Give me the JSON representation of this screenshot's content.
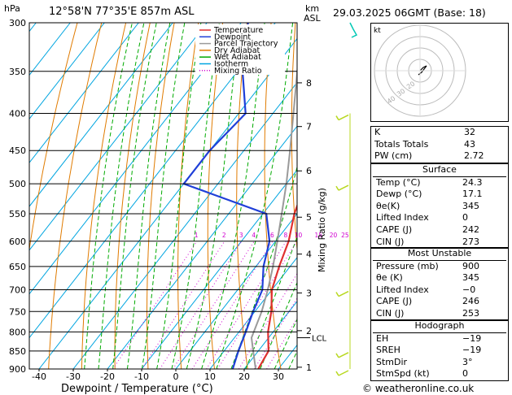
{
  "header": {
    "location": "12°58'N  77°35'E  857m  ASL",
    "date": "29.03.2025  06GMT  (Base: 18)",
    "left_unit": "hPa",
    "right_unit_km": "km",
    "right_unit_asl": "ASL"
  },
  "chart_data": {
    "type": "line",
    "title": "12°58'N  77°35'E  857m  ASL",
    "xlabel": "Dewpoint / Temperature (°C)",
    "ylabel": "hPa",
    "right_label": "Mixing Ratio (g/kg)",
    "xlim": [
      -45,
      40
    ],
    "ylim": [
      900,
      300
    ],
    "pressure_ticks": [
      300,
      350,
      400,
      450,
      500,
      550,
      600,
      650,
      700,
      750,
      800,
      850,
      900
    ],
    "temperature_ticks": [
      -40,
      -30,
      -20,
      -10,
      0,
      10,
      20,
      30
    ],
    "km_ticks": [
      {
        "label": "1",
        "p": 895
      },
      {
        "label": "2",
        "p": 797
      },
      {
        "label": "3",
        "p": 707
      },
      {
        "label": "4",
        "p": 625
      },
      {
        "label": "5",
        "p": 556
      },
      {
        "label": "6",
        "p": 480
      },
      {
        "label": "7",
        "p": 417
      },
      {
        "label": "8",
        "p": 363
      }
    ],
    "lcl_label": "LCL",
    "lcl_p": 815,
    "mixing_ratio_labels": [
      "1",
      "2",
      "3",
      "4",
      "6",
      "8",
      "10",
      "15",
      "20",
      "25"
    ],
    "mixing_ratio_values": [
      1,
      2,
      3,
      4,
      6,
      8,
      10,
      15,
      20,
      25
    ],
    "legend": {
      "position": "top-left",
      "items": [
        {
          "label": "Temperature",
          "color": "#e03030",
          "style": "solid"
        },
        {
          "label": "Dewpoint",
          "color": "#1f3fd8",
          "style": "solid"
        },
        {
          "label": "Parcel Trajectory",
          "color": "#9a9a9a",
          "style": "solid"
        },
        {
          "label": "Dry Adiabat",
          "color": "#e07b00",
          "style": "solid"
        },
        {
          "label": "Wet Adiabat",
          "color": "#00aa00",
          "style": "solid"
        },
        {
          "label": "Isotherm",
          "color": "#00a5e0",
          "style": "solid"
        },
        {
          "label": "Mixing Ratio",
          "color": "#d000d0",
          "style": "dotted"
        }
      ]
    },
    "series": [
      {
        "name": "Temperature",
        "color": "#e03030",
        "points": [
          [
            910,
            24.3
          ],
          [
            850,
            23.0
          ],
          [
            800,
            18.5
          ],
          [
            750,
            14.8
          ],
          [
            700,
            10.0
          ],
          [
            650,
            6.8
          ],
          [
            600,
            3.8
          ],
          [
            550,
            -0.8
          ],
          [
            500,
            -4.5
          ],
          [
            450,
            -11.0
          ],
          [
            400,
            -21.0
          ],
          [
            350,
            -31.0
          ],
          [
            300,
            -40.5
          ]
        ]
      },
      {
        "name": "Dewpoint",
        "color": "#1f3fd8",
        "points": [
          [
            910,
            17.1
          ],
          [
            850,
            14.2
          ],
          [
            800,
            12.0
          ],
          [
            750,
            9.5
          ],
          [
            700,
            7.2
          ],
          [
            650,
            2.2
          ],
          [
            600,
            -1.8
          ],
          [
            550,
            -9.0
          ],
          [
            500,
            -40.0
          ],
          [
            450,
            -40.0
          ],
          [
            400,
            -38.0
          ],
          [
            350,
            -48.5
          ],
          [
            300,
            -58.0
          ]
        ]
      },
      {
        "name": "Parcel Trajectory",
        "color": "#9a9a9a",
        "points": [
          [
            910,
            24.3
          ],
          [
            850,
            18.5
          ],
          [
            815,
            15.0
          ],
          [
            750,
            12.0
          ],
          [
            700,
            8.8
          ],
          [
            650,
            5.0
          ],
          [
            600,
            0.5
          ],
          [
            550,
            -4.5
          ],
          [
            500,
            -10.0
          ],
          [
            450,
            -16.5
          ],
          [
            400,
            -24.0
          ],
          [
            350,
            -32.5
          ],
          [
            300,
            -42.5
          ]
        ]
      }
    ],
    "wind_barbs_pressures": [
      300,
      400,
      500,
      700,
      850,
      900
    ]
  },
  "indices": {
    "basic": [
      {
        "label": "K",
        "value": "32"
      },
      {
        "label": "Totals Totals",
        "value": "43"
      },
      {
        "label": "PW (cm)",
        "value": "2.72"
      }
    ],
    "surface": {
      "title": "Surface",
      "rows": [
        {
          "label": "Temp (°C)",
          "value": "24.3"
        },
        {
          "label": "Dewp (°C)",
          "value": "17.1"
        },
        {
          "label": "θe(K)",
          "value": "345"
        },
        {
          "label": "Lifted Index",
          "value": "0"
        },
        {
          "label": "CAPE (J)",
          "value": "242"
        },
        {
          "label": "CIN (J)",
          "value": "273"
        }
      ]
    },
    "most_unstable": {
      "title": "Most Unstable",
      "rows": [
        {
          "label": "Pressure (mb)",
          "value": "900"
        },
        {
          "label": "θe (K)",
          "value": "345"
        },
        {
          "label": "Lifted Index",
          "value": "−0"
        },
        {
          "label": "CAPE (J)",
          "value": "246"
        },
        {
          "label": "CIN (J)",
          "value": "253"
        }
      ]
    },
    "hodograph": {
      "title": "Hodograph",
      "rows": [
        {
          "label": "EH",
          "value": "−19"
        },
        {
          "label": "SREH",
          "value": "−19"
        },
        {
          "label": "StmDir",
          "value": "3°"
        },
        {
          "label": "StmSpd (kt)",
          "value": "0"
        }
      ]
    }
  },
  "hodo": {
    "unit": "kt",
    "ring_labels": [
      "40",
      "30",
      "20"
    ]
  },
  "footer": {
    "copyright": "© weatheronline.co.uk"
  }
}
